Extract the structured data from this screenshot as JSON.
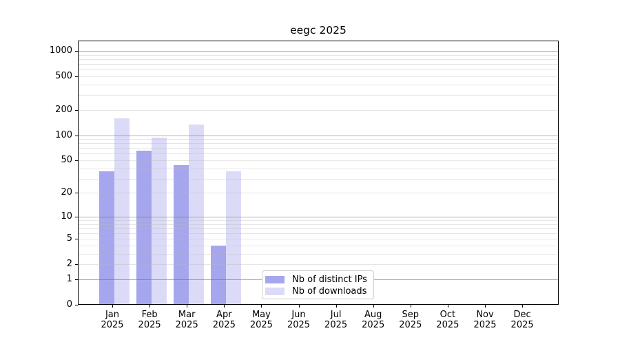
{
  "chart_data": {
    "type": "bar",
    "title": "eegc 2025",
    "categories": [
      "Jan",
      "Feb",
      "Mar",
      "Apr",
      "May",
      "Jun",
      "Jul",
      "Aug",
      "Sep",
      "Oct",
      "Nov",
      "Dec"
    ],
    "x_tick_year": "2025",
    "series": [
      {
        "name": "Nb of distinct IPs",
        "color": "#a6a6ee",
        "values": [
          37,
          65,
          44,
          4,
          null,
          null,
          null,
          null,
          null,
          null,
          null,
          null
        ]
      },
      {
        "name": "Nb of downloads",
        "color": "#dbdbf8",
        "values": [
          160,
          93,
          135,
          37,
          null,
          null,
          null,
          null,
          null,
          null,
          null,
          null
        ]
      }
    ],
    "xlabel": "",
    "ylabel": "",
    "y_axis": {
      "scale": "log1p",
      "ticks": [
        0,
        1,
        2,
        5,
        10,
        20,
        50,
        100,
        200,
        500,
        1000
      ],
      "major_gridlines": [
        1,
        10,
        100,
        1000
      ],
      "minor_gridline_multiples": [
        2,
        3,
        4,
        5,
        6,
        7,
        8,
        9
      ],
      "ylim": [
        0,
        1320
      ]
    },
    "grid": true,
    "legend": {
      "position": "inside-bottom-center"
    }
  }
}
